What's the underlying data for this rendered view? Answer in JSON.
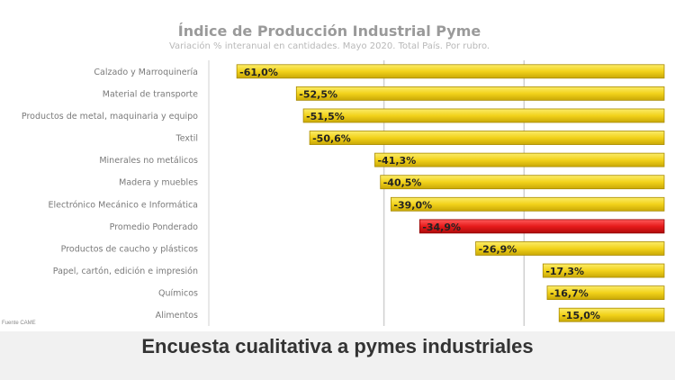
{
  "caption": "Encuesta cualitativa a pymes industriales",
  "source": "Fuente CAME",
  "colors": {
    "bar": "#f2d21a",
    "bar_highlight": "#e61b1b",
    "grid": "#d0d0d0"
  },
  "chart_data": {
    "type": "bar",
    "orientation": "horizontal",
    "title": "Índice de Producción Industrial Pyme",
    "subtitle": "Variación % interanual en cantidades. Mayo 2020. Total País. Por rubro.",
    "xlabel": "",
    "ylabel": "",
    "xlim": [
      -65,
      0
    ],
    "grid": true,
    "categories": [
      "Calzado y Marroquinería",
      "Material de transporte",
      "Productos de metal, maquinaria y equipo",
      "Textil",
      "Minerales no metálicos",
      "Madera y muebles",
      "Electrónico Mecánico e Informática",
      "Promedio Ponderado",
      "Productos de caucho y plásticos",
      "Papel, cartón, edición e impresión",
      "Químicos",
      "Alimentos"
    ],
    "values": [
      -61.0,
      -52.5,
      -51.5,
      -50.6,
      -41.3,
      -40.5,
      -39.0,
      -34.9,
      -26.9,
      -17.3,
      -16.7,
      -15.0
    ],
    "data_labels": [
      "-61,0%",
      "-52,5%",
      "-51,5%",
      "-50,6%",
      "-41,3%",
      "-40,5%",
      "-39,0%",
      "-34,9%",
      "-26,9%",
      "-17,3%",
      "-16,7%",
      "-15,0%"
    ],
    "highlight_index": 7
  }
}
